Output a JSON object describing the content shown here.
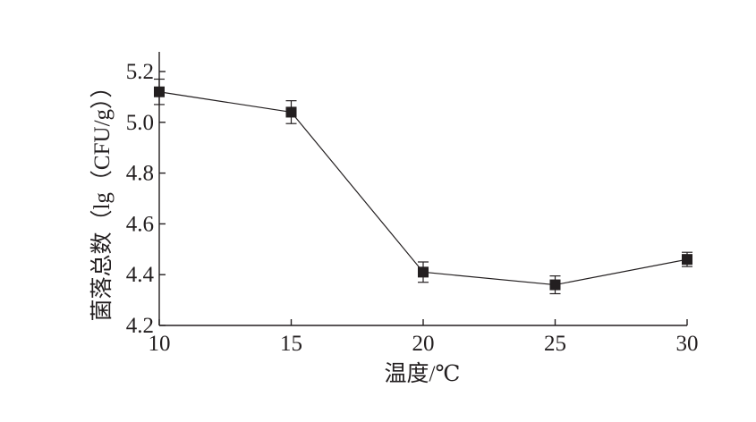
{
  "chart_data": {
    "type": "line",
    "xlabel": "温度/℃",
    "ylabel": "菌落总数（lg（CFU/g））",
    "xlim": [
      10,
      30
    ],
    "ylim": [
      4.2,
      5.2
    ],
    "x_ticks": [
      "10",
      "15",
      "20",
      "25",
      "30"
    ],
    "y_ticks": [
      "4.2",
      "4.4",
      "4.6",
      "4.8",
      "5.0",
      "5.2"
    ],
    "x": [
      10,
      15,
      20,
      25,
      30
    ],
    "series": [
      {
        "values": [
          5.12,
          5.04,
          4.41,
          4.36,
          4.46
        ],
        "errors": [
          0.05,
          0.045,
          0.04,
          0.035,
          0.028
        ],
        "marker": "square",
        "color": "#231f20"
      }
    ],
    "grid": false,
    "legend": "none"
  }
}
